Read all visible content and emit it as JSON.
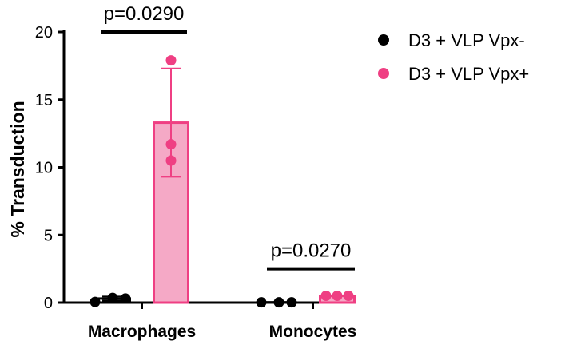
{
  "chart_data": {
    "type": "bar",
    "title": "",
    "xlabel": "",
    "ylabel": "% Transduction",
    "ylim": [
      0,
      20
    ],
    "yticks": [
      "0",
      "5",
      "10",
      "15",
      "20"
    ],
    "categories": [
      "Macrophages",
      "Monocytes"
    ],
    "series": [
      {
        "name": "D3 + VLP Vpx-",
        "color": "#000000",
        "bar_fill": "#ffffff",
        "mean": [
          0.3,
          0.02
        ],
        "error": [
          0.15,
          0.02
        ],
        "points": [
          [
            0.05,
            0.35,
            0.3
          ],
          [
            0.02,
            0.02,
            0.02
          ]
        ]
      },
      {
        "name": "D3 + VLP Vpx+",
        "color": "#ef3f83",
        "bar_fill": "#f5a9c6",
        "mean": [
          13.3,
          0.5
        ],
        "error": [
          4.0,
          0.05
        ],
        "points": [
          [
            17.9,
            11.7,
            10.5
          ],
          [
            0.5,
            0.5,
            0.5
          ]
        ]
      }
    ],
    "annotations": [
      {
        "text": "p=0.0290",
        "category": "Macrophages",
        "y": 20
      },
      {
        "text": "p=0.0270",
        "category": "Monocytes",
        "y": 2.5
      }
    ],
    "legend_position": "top-right"
  }
}
